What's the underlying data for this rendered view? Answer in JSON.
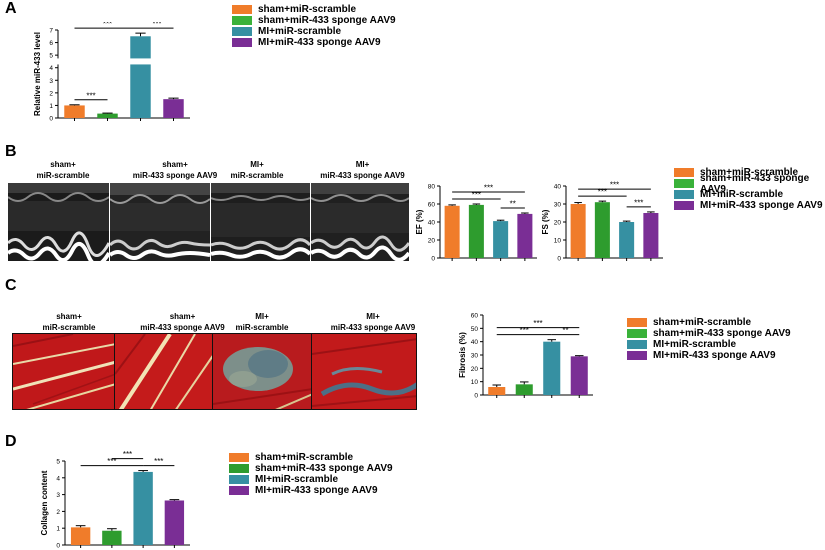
{
  "panels": [
    "A",
    "B",
    "C",
    "D"
  ],
  "groups": [
    "sham+miR-scramble",
    "sham+miR-433 sponge AAV9",
    "MI+miR-scramble",
    "MI+miR-433 sponge AAV9"
  ],
  "captions": [
    [
      "sham+",
      "miR-scramble"
    ],
    [
      "sham+",
      "miR-433 sponge AAV9"
    ],
    [
      "MI+",
      "miR-scramble"
    ],
    [
      "MI+",
      "miR-433 sponge AAV9"
    ]
  ],
  "colors": [
    "#F07C2A",
    "#2E9C2E",
    "#3690A2",
    "#7A2E95"
  ],
  "chart_data": [
    {
      "id": "A",
      "type": "bar",
      "categories": [
        "sham+miR-scramble",
        "sham+miR-433 sponge AAV9",
        "MI+miR-scramble",
        "MI+miR-433 sponge AAV9"
      ],
      "values": [
        1.0,
        0.35,
        6.5,
        1.5
      ],
      "errors": [
        0.05,
        0.04,
        0.25,
        0.08
      ],
      "ylabel": "Relative miR-433 level",
      "ylim": [
        0,
        7
      ],
      "yticks": [
        "0",
        "1",
        "2",
        "3",
        "4",
        "5",
        "6",
        "7"
      ],
      "axis_break": [
        4,
        5
      ],
      "significance": [
        "***",
        "***",
        "***"
      ]
    },
    {
      "id": "B-EF",
      "type": "bar",
      "categories": [
        "sham+miR-scramble",
        "sham+miR-433 sponge AAV9",
        "MI+miR-scramble",
        "MI+miR-433 sponge AAV9"
      ],
      "values": [
        58,
        59,
        41,
        49
      ],
      "errors": [
        1,
        1,
        1,
        1
      ],
      "ylabel": "EF (%)",
      "ylim": [
        0,
        80
      ],
      "yticks": [
        "0",
        "20",
        "40",
        "60",
        "80"
      ],
      "significance": [
        "***",
        "**",
        "***"
      ]
    },
    {
      "id": "B-FS",
      "type": "bar",
      "categories": [
        "sham+miR-scramble",
        "sham+miR-433 sponge AAV9",
        "MI+miR-scramble",
        "MI+miR-433 sponge AAV9"
      ],
      "values": [
        30,
        31,
        20,
        25
      ],
      "errors": [
        0.8,
        0.6,
        0.5,
        0.6
      ],
      "ylabel": "FS (%)",
      "ylim": [
        0,
        40
      ],
      "yticks": [
        "0",
        "10",
        "20",
        "30",
        "40"
      ],
      "significance": [
        "***",
        "***",
        "***"
      ]
    },
    {
      "id": "C",
      "type": "bar",
      "categories": [
        "sham+miR-scramble",
        "sham+miR-433 sponge AAV9",
        "MI+miR-scramble",
        "MI+miR-433 sponge AAV9"
      ],
      "values": [
        6,
        8,
        40,
        29
      ],
      "errors": [
        1.5,
        1.8,
        1.5,
        0.5
      ],
      "ylabel": "Fibrosis (%)",
      "ylim": [
        0,
        60
      ],
      "yticks": [
        "0",
        "10",
        "20",
        "30",
        "40",
        "50",
        "60"
      ],
      "significance": [
        "***",
        "**",
        "***"
      ]
    },
    {
      "id": "D",
      "type": "bar",
      "categories": [
        "sham+miR-scramble",
        "sham+miR-433 sponge AAV9",
        "MI+miR-scramble",
        "MI+miR-433 sponge AAV9"
      ],
      "values": [
        1.05,
        0.85,
        4.35,
        2.65
      ],
      "errors": [
        0.1,
        0.12,
        0.08,
        0.05
      ],
      "ylabel": "Collagen  content",
      "ylim": [
        0,
        5
      ],
      "yticks": [
        "0",
        "1",
        "2",
        "3",
        "4",
        "5"
      ],
      "significance": [
        "***",
        "***",
        "***"
      ]
    }
  ]
}
